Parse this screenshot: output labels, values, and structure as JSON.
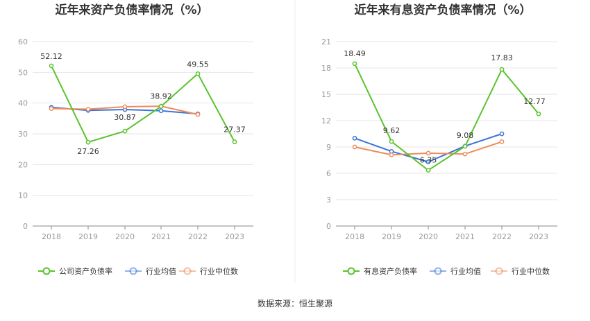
{
  "chart_data": [
    {
      "type": "line",
      "title": "近年来资产负债率情况（%）",
      "categories": [
        "2018",
        "2019",
        "2020",
        "2021",
        "2022",
        "2023"
      ],
      "ylim": [
        0,
        60
      ],
      "yticks": [
        0,
        10,
        20,
        30,
        40,
        50,
        60
      ],
      "grid": true,
      "legend_position": "bottom",
      "series": [
        {
          "name": "公司资产负债率",
          "color": "#5ac32d",
          "values": [
            52.12,
            27.26,
            30.87,
            38.92,
            49.55,
            27.37
          ],
          "labels": [
            "52.12",
            "27.26",
            "30.87",
            "38.92",
            "49.55",
            "27.37"
          ]
        },
        {
          "name": "行业均值",
          "color": "#3a74d8",
          "values": [
            38.6,
            37.6,
            37.9,
            37.5,
            36.5,
            null
          ]
        },
        {
          "name": "行业中位数",
          "color": "#ef8b5a",
          "values": [
            38.2,
            38.0,
            38.8,
            39.0,
            36.3,
            null
          ]
        }
      ]
    },
    {
      "type": "line",
      "title": "近年来有息资产负债率情况（%）",
      "categories": [
        "2018",
        "2019",
        "2020",
        "2021",
        "2022",
        "2023"
      ],
      "ylim": [
        0,
        21
      ],
      "yticks": [
        0,
        3,
        6,
        9,
        12,
        15,
        18,
        21
      ],
      "grid": true,
      "legend_position": "bottom",
      "series": [
        {
          "name": "有息资产负债率",
          "color": "#5ac32d",
          "values": [
            18.49,
            9.62,
            6.35,
            9.08,
            17.83,
            12.77
          ],
          "labels": [
            "18.49",
            "9.62",
            "6.35",
            "9.08",
            "17.83",
            "12.77"
          ]
        },
        {
          "name": "行业均值",
          "color": "#3a74d8",
          "values": [
            10.0,
            8.5,
            7.3,
            9.1,
            10.5,
            null
          ]
        },
        {
          "name": "行业中位数",
          "color": "#ef8b5a",
          "values": [
            9.0,
            8.1,
            8.3,
            8.2,
            9.6,
            null
          ]
        }
      ]
    }
  ],
  "footer": {
    "source": "数据来源：恒生聚源"
  }
}
